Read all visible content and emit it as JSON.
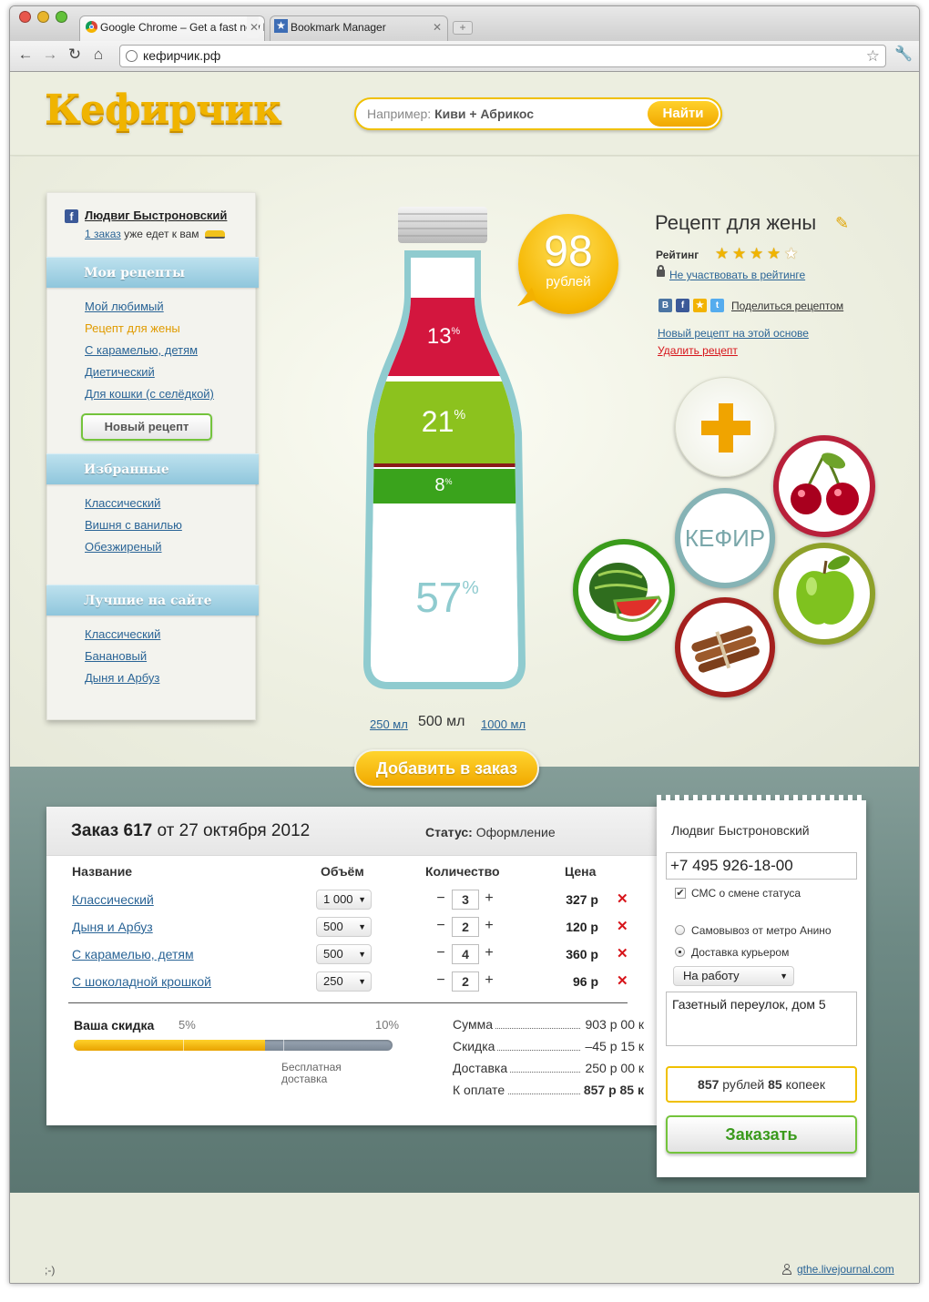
{
  "browser": {
    "tabs": [
      {
        "label": "Google Chrome – Get a fast new browser. For PC, Mac, and Linux"
      },
      {
        "label": "Bookmark Manager"
      }
    ],
    "url": "кефирчик.рф",
    "new_tab": "+"
  },
  "header": {
    "logo": "Кефирчик",
    "search_prefix": "Например:",
    "search_example": "Киви + Абрикос",
    "search_button": "Найти"
  },
  "sidebar": {
    "user": "Людвиг Быстроновский",
    "order_link": "1 заказ",
    "order_text": "уже едет к вам",
    "my_recipes_title": "Мои рецепты",
    "my_recipes": [
      "Мой любимый",
      "Рецепт для жены",
      "С карамелью, детям",
      "Диетический",
      "Для кошки (с селёдкой)"
    ],
    "new_recipe": "Новый рецепт",
    "favorites_title": "Избранные",
    "favorites": [
      "Классический",
      "Вишня с ванилью",
      "Обезжиреный"
    ],
    "best_title": "Лучшие на сайте",
    "best": [
      "Классический",
      "Банановый",
      "Дыня и Арбуз"
    ]
  },
  "bottle": {
    "segments": [
      {
        "label": "13",
        "value": 13,
        "color": "#d3163e"
      },
      {
        "label": "21",
        "value": 21,
        "color": "#8cc21e"
      },
      {
        "label": "8",
        "value": 8,
        "color": "#3aa31c"
      },
      {
        "label": "57",
        "value": 57,
        "color": "#ffffff"
      }
    ],
    "percent_sign": "%",
    "price_value": "98",
    "price_unit": "рублей",
    "sizes": [
      "250 мл",
      "500 мл",
      "1000 мл"
    ],
    "add_to_order": "Добавить в заказ"
  },
  "recipe": {
    "title": "Рецепт для жены",
    "rating_label": "Рейтинг",
    "rating": 4,
    "rating_max": 5,
    "no_rating": "Не участвовать в рейтинге",
    "share": "Поделиться рецептом",
    "new_based": "Новый рецепт на этой основе",
    "delete": "Удалить рецепт",
    "base_label": "КЕФИР"
  },
  "order": {
    "title_prefix": "Заказ",
    "number": "617",
    "date": "от 27 октября 2012",
    "status_label": "Статус:",
    "status": "Оформление",
    "columns": [
      "Название",
      "Объём",
      "Количество",
      "Цена"
    ],
    "rows": [
      {
        "name": "Классический",
        "volume": "1 000",
        "qty": "3",
        "price": "327 р"
      },
      {
        "name": "Дыня и Арбуз",
        "volume": "500",
        "qty": "2",
        "price": "120 р"
      },
      {
        "name": "С карамелью, детям",
        "volume": "500",
        "qty": "4",
        "price": "360 р"
      },
      {
        "name": "С шоколадной крошкой",
        "volume": "250",
        "qty": "2",
        "price": "96 р"
      }
    ],
    "discount_label": "Ваша скидка",
    "discount_5": "5%",
    "discount_10": "10%",
    "discount_progress": 0.6,
    "free_delivery": "Бесплатная доставка",
    "summary": [
      {
        "label": "Сумма",
        "value": "903 р 00 к"
      },
      {
        "label": "Скидка",
        "value": "–45 р 15 к"
      },
      {
        "label": "Доставка",
        "value": "250 р 00 к"
      },
      {
        "label": "К оплате",
        "value": "857 р 85 к"
      }
    ]
  },
  "checkout": {
    "name": "Людвиг Быстроновский",
    "phone": "+7 495 926-18-00",
    "sms": "СМС о смене статуса",
    "pickup": "Самовывоз от метро Анино",
    "courier": "Доставка курьером",
    "destination": "На работу",
    "address": "Газетный переулок, дом 5",
    "total_rub": "857",
    "total_rub_word": "рублей",
    "total_kop": "85",
    "total_kop_word": "копеек",
    "submit": "Заказать"
  },
  "footer": {
    "smiley": ";-)",
    "credit": "gthe.livejournal.com"
  }
}
